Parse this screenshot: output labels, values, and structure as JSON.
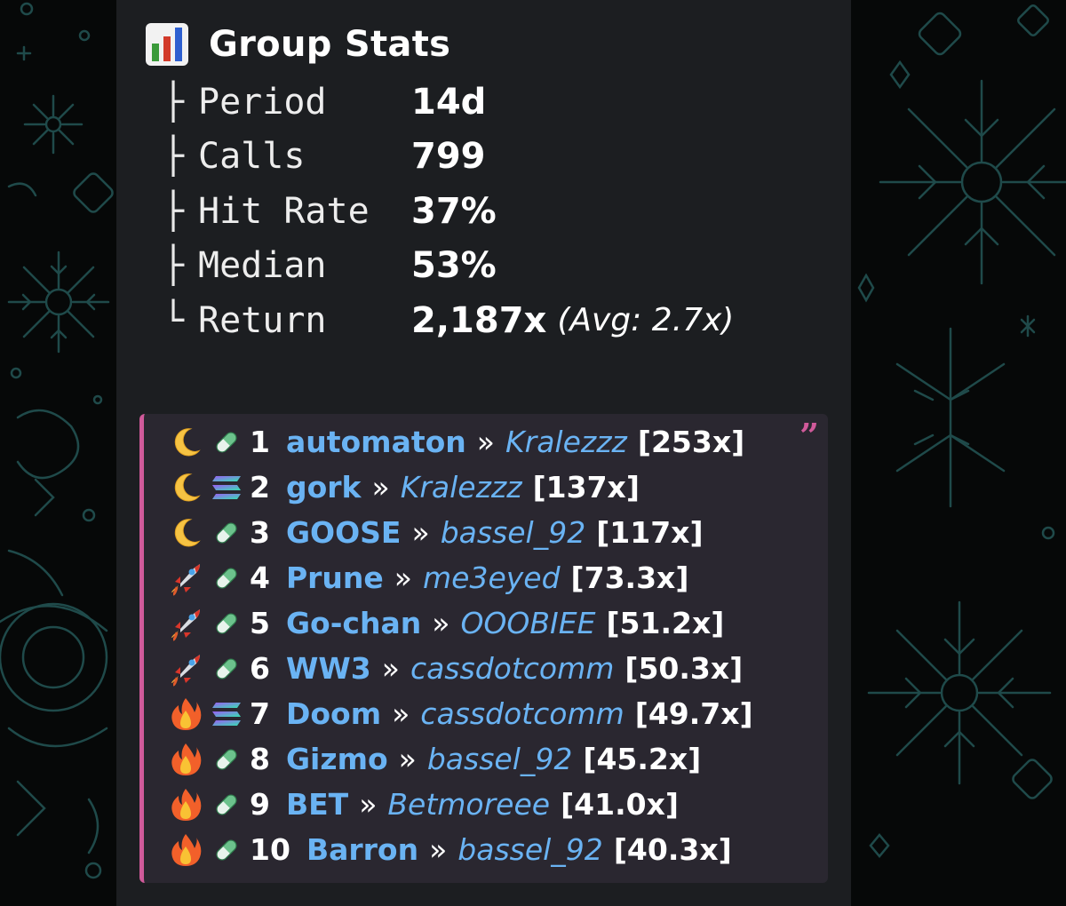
{
  "header": {
    "icon": "bar-chart-icon",
    "title": "Group Stats"
  },
  "stats": [
    {
      "tree": "├",
      "label": "Period",
      "value": "14d"
    },
    {
      "tree": "├",
      "label": "Calls",
      "value": "799"
    },
    {
      "tree": "├",
      "label": "Hit Rate",
      "value": "37%"
    },
    {
      "tree": "├",
      "label": "Median",
      "value": "53%"
    },
    {
      "tree": "└",
      "label": "Return",
      "value": "2,187x",
      "avg": "(Avg: 2.7x)"
    }
  ],
  "leaderboard": [
    {
      "badge": "moon-icon",
      "chain": "pill-icon",
      "rank": "1",
      "token": "automaton",
      "sep": "»",
      "caller": "Kralezzz",
      "mult": "[253x]"
    },
    {
      "badge": "moon-icon",
      "chain": "solana-icon",
      "rank": "2",
      "token": "gork",
      "sep": "»",
      "caller": "Kralezzz",
      "mult": "[137x]"
    },
    {
      "badge": "moon-icon",
      "chain": "pill-icon",
      "rank": "3",
      "token": "GOOSE",
      "sep": "»",
      "caller": "bassel_92",
      "mult": "[117x]"
    },
    {
      "badge": "rocket-icon",
      "chain": "pill-icon",
      "rank": "4",
      "token": "Prune",
      "sep": "»",
      "caller": "me3eyed",
      "mult": "[73.3x]"
    },
    {
      "badge": "rocket-icon",
      "chain": "pill-icon",
      "rank": "5",
      "token": "Go-chan",
      "sep": "»",
      "caller": "OOOBIEE",
      "mult": "[51.2x]"
    },
    {
      "badge": "rocket-icon",
      "chain": "pill-icon",
      "rank": "6",
      "token": "WW3",
      "sep": "»",
      "caller": "cassdotcomm",
      "mult": "[50.3x]"
    },
    {
      "badge": "fire-icon",
      "chain": "solana-icon",
      "rank": "7",
      "token": "Doom",
      "sep": "»",
      "caller": "cassdotcomm",
      "mult": "[49.7x]"
    },
    {
      "badge": "fire-icon",
      "chain": "pill-icon",
      "rank": "8",
      "token": "Gizmo",
      "sep": "»",
      "caller": "bassel_92",
      "mult": "[45.2x]"
    },
    {
      "badge": "fire-icon",
      "chain": "pill-icon",
      "rank": "9",
      "token": "BET",
      "sep": "»",
      "caller": "Betmoreee",
      "mult": "[41.0x]"
    },
    {
      "badge": "fire-icon",
      "chain": "pill-icon",
      "rank": "10",
      "token": "Barron",
      "sep": "»",
      "caller": "bassel_92",
      "mult": "[40.3x]"
    }
  ],
  "quote": {
    "icon": "quote-icon",
    "mark": "”"
  },
  "colors": {
    "background": "#060808",
    "bubble": "#1c1e21",
    "quote_bg": "#2a2730",
    "quote_accent": "#d05a9a",
    "link": "#6ab3f3",
    "pattern": "#1f4a4a"
  }
}
